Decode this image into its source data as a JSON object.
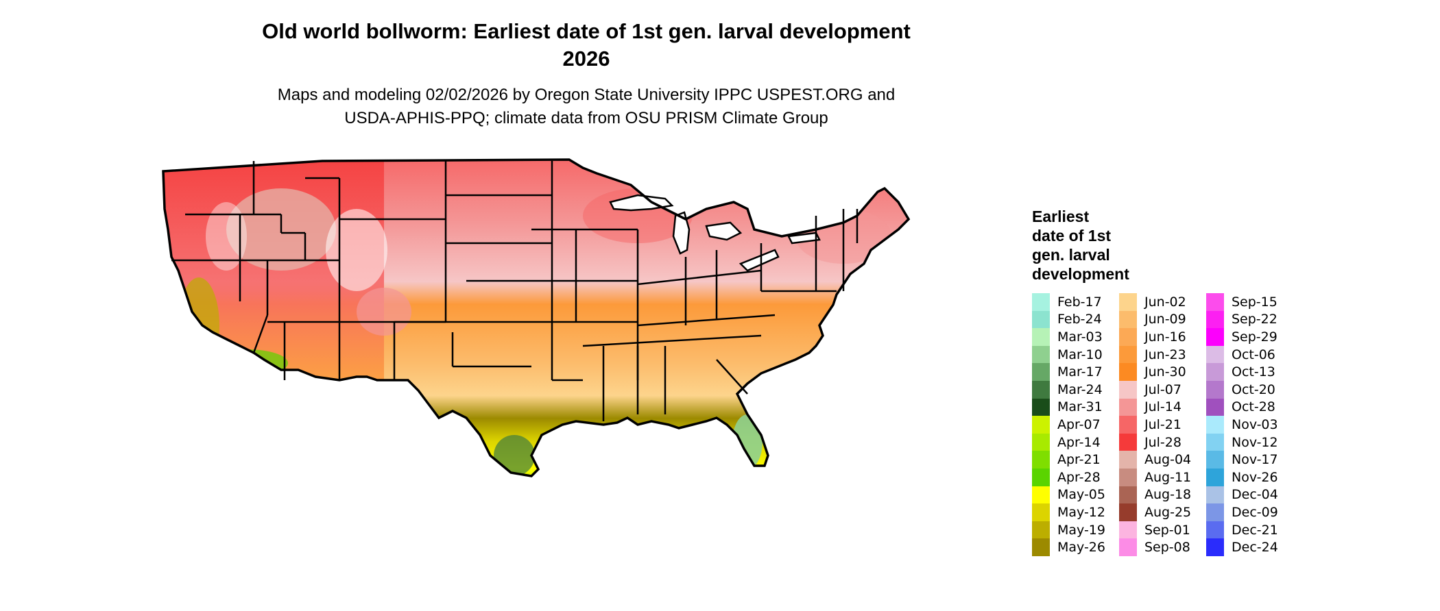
{
  "title": {
    "line1": "Old world bollworm: Earliest date of 1st gen. larval development",
    "line2": "2026"
  },
  "subtitle": {
    "line1": "Maps and modeling 02/02/2026 by Oregon State University IPPC USPEST.ORG and",
    "line2": "USDA-APHIS-PPQ; climate data from OSU PRISM Climate Group"
  },
  "legend": {
    "title_lines": [
      "Earliest",
      "date of 1st",
      "gen. larval",
      "development"
    ],
    "columns": [
      [
        {
          "label": "Feb-17",
          "color": "#a6f2e0"
        },
        {
          "label": "Feb-24",
          "color": "#8ce3cf"
        },
        {
          "label": "Mar-03",
          "color": "#b6f2b6"
        },
        {
          "label": "Mar-10",
          "color": "#8fd08f"
        },
        {
          "label": "Mar-17",
          "color": "#66a866"
        },
        {
          "label": "Mar-24",
          "color": "#3f7a3f"
        },
        {
          "label": "Mar-31",
          "color": "#1a4d1a"
        },
        {
          "label": "Apr-07",
          "color": "#ccf200"
        },
        {
          "label": "Apr-14",
          "color": "#a8ea00"
        },
        {
          "label": "Apr-21",
          "color": "#7fde00"
        },
        {
          "label": "Apr-28",
          "color": "#5ad400"
        },
        {
          "label": "May-05",
          "color": "#ffff00"
        },
        {
          "label": "May-12",
          "color": "#dcd400"
        },
        {
          "label": "May-19",
          "color": "#bcae00"
        },
        {
          "label": "May-26",
          "color": "#9c8a00"
        }
      ],
      [
        {
          "label": "Jun-02",
          "color": "#fdd48c"
        },
        {
          "label": "Jun-09",
          "color": "#fcbc6c"
        },
        {
          "label": "Jun-16",
          "color": "#fca955"
        },
        {
          "label": "Jun-23",
          "color": "#fc9a3a"
        },
        {
          "label": "Jun-30",
          "color": "#fc8a22"
        },
        {
          "label": "Jul-07",
          "color": "#f6c6c6"
        },
        {
          "label": "Jul-14",
          "color": "#f49696"
        },
        {
          "label": "Jul-21",
          "color": "#f66666"
        },
        {
          "label": "Jul-28",
          "color": "#f53a3a"
        },
        {
          "label": "Aug-04",
          "color": "#e4b4aa"
        },
        {
          "label": "Aug-11",
          "color": "#c88c80"
        },
        {
          "label": "Aug-18",
          "color": "#aa6454"
        },
        {
          "label": "Aug-25",
          "color": "#963c2c"
        },
        {
          "label": "Sep-01",
          "color": "#fcb4e0"
        },
        {
          "label": "Sep-08",
          "color": "#fc8ce6"
        }
      ],
      [
        {
          "label": "Sep-15",
          "color": "#fc4cec"
        },
        {
          "label": "Sep-22",
          "color": "#fc20f2"
        },
        {
          "label": "Sep-29",
          "color": "#fc00fc"
        },
        {
          "label": "Oct-06",
          "color": "#dcbce6"
        },
        {
          "label": "Oct-13",
          "color": "#c89ad8"
        },
        {
          "label": "Oct-20",
          "color": "#b478cc"
        },
        {
          "label": "Oct-28",
          "color": "#a050be"
        },
        {
          "label": "Nov-03",
          "color": "#aaeafc"
        },
        {
          "label": "Nov-12",
          "color": "#82d2f2"
        },
        {
          "label": "Nov-17",
          "color": "#5abae6"
        },
        {
          "label": "Nov-26",
          "color": "#2ea4da"
        },
        {
          "label": "Dec-04",
          "color": "#aac2e6"
        },
        {
          "label": "Dec-09",
          "color": "#7c96e6"
        },
        {
          "label": "Dec-21",
          "color": "#5a6cf0"
        },
        {
          "label": "Dec-24",
          "color": "#2a2cfc"
        }
      ]
    ]
  }
}
